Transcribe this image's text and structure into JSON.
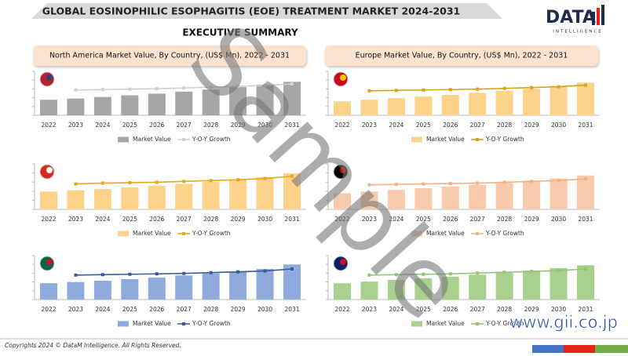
{
  "page": {
    "title": "GLOBAL EOSINOPHILIC ESOPHAGITIS (EOE) TREATMENT MARKET 2024-2031",
    "subtitle": "EXECUTIVE SUMMARY",
    "logo": "DATA",
    "logo_tagline": "INTELLIGENCE",
    "panel_titles": [
      "North America Market Value, By Country, (US$ Mn), 2022 - 2031",
      "Europe Market Value, By Country, (US$ Mn), 2022 - 2031"
    ],
    "watermark": "Sample",
    "footer": "Copyrights 2024 © DataM Intelligence. All Rights Reserved.",
    "website": "www.gii.co.jp"
  },
  "chart_data": [
    {
      "type": "bar",
      "categories": [
        "2022",
        "2023",
        "2024",
        "2025",
        "2026",
        "2027",
        "2028",
        "2029",
        "2030",
        "2031"
      ],
      "ylim": [
        0,
        100
      ],
      "y2lim": [
        0,
        100
      ],
      "series": [
        {
          "name": "Market Value",
          "color": "#a6a6a6",
          "values": [
            38,
            41,
            45,
            49,
            53,
            58,
            63,
            69,
            75,
            82
          ]
        },
        {
          "name": "Y-O-Y Growth",
          "type": "line",
          "axis": "y2",
          "color": "#d0d0d0",
          "values": [
            null,
            62,
            63,
            64,
            65,
            67,
            69,
            71,
            73,
            77
          ]
        }
      ]
    },
    {
      "type": "bar",
      "categories": [
        "2022",
        "2023",
        "2024",
        "2025",
        "2026",
        "2027",
        "2028",
        "2029",
        "2030",
        "2031"
      ],
      "ylim": [
        0,
        100
      ],
      "y2lim": [
        0,
        100
      ],
      "series": [
        {
          "name": "Market Value",
          "color": "#fdd28a",
          "values": [
            42,
            45,
            48,
            52,
            56,
            60,
            65,
            70,
            76,
            85
          ]
        },
        {
          "name": "Y-O-Y Growth",
          "type": "line",
          "axis": "y2",
          "color": "#e3a81b",
          "values": [
            null,
            60,
            62,
            63,
            64,
            66,
            68,
            70,
            73,
            78
          ]
        }
      ]
    },
    {
      "type": "bar",
      "categories": [
        "2022",
        "2023",
        "2024",
        "2025",
        "2026",
        "2027",
        "2028",
        "2029",
        "2030",
        "2031"
      ],
      "ylim": [
        0,
        100
      ],
      "y2lim": [
        0,
        100
      ],
      "series": [
        {
          "name": "Market Value",
          "color": "#8faadc",
          "values": [
            40,
            43,
            46,
            50,
            54,
            59,
            64,
            69,
            75,
            86
          ]
        },
        {
          "name": "Y-O-Y Growth",
          "type": "line",
          "axis": "y2",
          "color": "#3a5a9c",
          "values": [
            null,
            60,
            61,
            62,
            63,
            64,
            66,
            68,
            70,
            75
          ]
        }
      ]
    },
    {
      "type": "bar",
      "categories": [
        "2022",
        "2023",
        "2024",
        "2025",
        "2026",
        "2027",
        "2028",
        "2029",
        "2030",
        "2031"
      ],
      "ylim": [
        0,
        100
      ],
      "y2lim": [
        0,
        100
      ],
      "series": [
        {
          "name": "Market Value",
          "color": "#fdd28a",
          "values": [
            34,
            38,
            42,
            46,
            50,
            55,
            60,
            65,
            72,
            80
          ]
        },
        {
          "name": "Y-O-Y Growth",
          "type": "line",
          "axis": "y2",
          "color": "#d9a316",
          "values": [
            null,
            60,
            61,
            62,
            63,
            64,
            66,
            68,
            70,
            74
          ]
        }
      ]
    },
    {
      "type": "bar",
      "categories": [
        "2022",
        "2023",
        "2024",
        "2025",
        "2026",
        "2027",
        "2028",
        "2029",
        "2030",
        "2031"
      ],
      "ylim": [
        0,
        100
      ],
      "y2lim": [
        0,
        100
      ],
      "series": [
        {
          "name": "Market Value",
          "color": "#f8cbad",
          "values": [
            38,
            42,
            46,
            50,
            54,
            58,
            63,
            68,
            73,
            80
          ]
        },
        {
          "name": "Y-O-Y Growth",
          "type": "line",
          "axis": "y2",
          "color": "#f4b183",
          "values": [
            null,
            58,
            59,
            60,
            61,
            62,
            64,
            66,
            68,
            72
          ]
        }
      ]
    },
    {
      "type": "bar",
      "categories": [
        "2022",
        "2023",
        "2024",
        "2025",
        "2026",
        "2027",
        "2028",
        "2029",
        "2030",
        "2031"
      ],
      "ylim": [
        0,
        100
      ],
      "y2lim": [
        0,
        100
      ],
      "series": [
        {
          "name": "Market Value",
          "color": "#a9d18e",
          "values": [
            40,
            44,
            48,
            52,
            56,
            61,
            66,
            71,
            77,
            84
          ]
        },
        {
          "name": "Y-O-Y Growth",
          "type": "line",
          "axis": "y2",
          "color": "#92c47a",
          "values": [
            null,
            60,
            61,
            62,
            63,
            65,
            67,
            69,
            71,
            75
          ]
        }
      ]
    }
  ]
}
